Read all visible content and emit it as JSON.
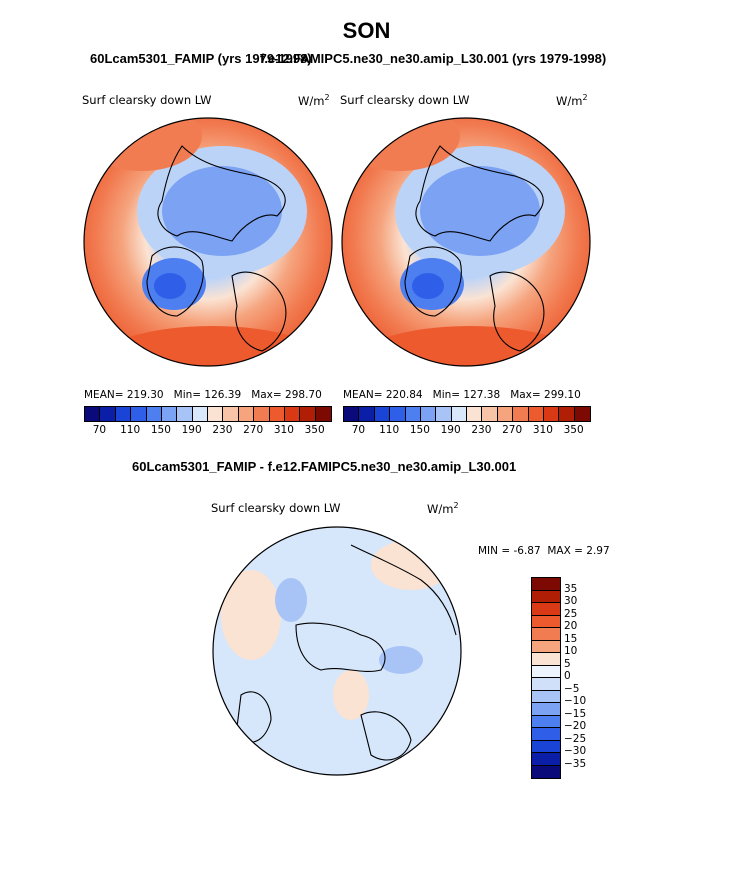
{
  "page": {
    "title": "SON",
    "panel1_header": "60Lcam5301_FAMIP (yrs 1979-1998)",
    "panel2_header": "f.e12.FAMIPC5.ne30_ne30.amip_L30.001 (yrs 1979-1998)",
    "diff_header": "60Lcam5301_FAMIP - f.e12.FAMIPC5.ne30_ne30.amip_L30.001"
  },
  "panels": [
    {
      "variable": "Surf clearsky down LW",
      "units": "W/m",
      "units_sup": "2",
      "mean_label": "MEAN=",
      "mean": "219.30",
      "min_label": "Min=",
      "min": "126.39",
      "max_label": "Max=",
      "max": "298.70"
    },
    {
      "variable": "Surf clearsky down LW",
      "units": "W/m",
      "units_sup": "2",
      "mean_label": "MEAN=",
      "mean": "220.84",
      "min_label": "Min=",
      "min": "127.38",
      "max_label": "Max=",
      "max": "299.10"
    }
  ],
  "diff_panel": {
    "variable": "Surf clearsky down LW",
    "units": "W/m",
    "units_sup": "2",
    "min_label": "MIN =",
    "min": "-6.87",
    "max_label": "MAX =",
    "max": "2.97"
  },
  "colorbar_main": {
    "colors": [
      "#0a0a7a",
      "#0b1ea8",
      "#1a44d6",
      "#2f5fe8",
      "#4d7ff0",
      "#7ba2f3",
      "#a8c4f6",
      "#d8e8fa",
      "#fbe3d3",
      "#f8c4a8",
      "#f5a47e",
      "#f27c52",
      "#ec5a2e",
      "#d93a15",
      "#b01e06",
      "#7d0a02"
    ],
    "ticks": [
      "70",
      "110",
      "150",
      "190",
      "230",
      "270",
      "310",
      "350"
    ]
  },
  "colorbar_diff": {
    "colors": [
      "#7d0a02",
      "#b01e06",
      "#d93a15",
      "#ec5a2e",
      "#f27c52",
      "#f5a47e",
      "#fbe3d3",
      "#eef4fc",
      "#cfe0f8",
      "#a8c4f6",
      "#7ba2f3",
      "#4d7ff0",
      "#2f5fe8",
      "#1a44d6",
      "#0b1ea8",
      "#0a0a7a"
    ],
    "ticks": [
      "35",
      "30",
      "25",
      "20",
      "15",
      "10",
      "5",
      "0",
      "−5",
      "−10",
      "−15",
      "−20",
      "−25",
      "−30",
      "−35"
    ]
  }
}
